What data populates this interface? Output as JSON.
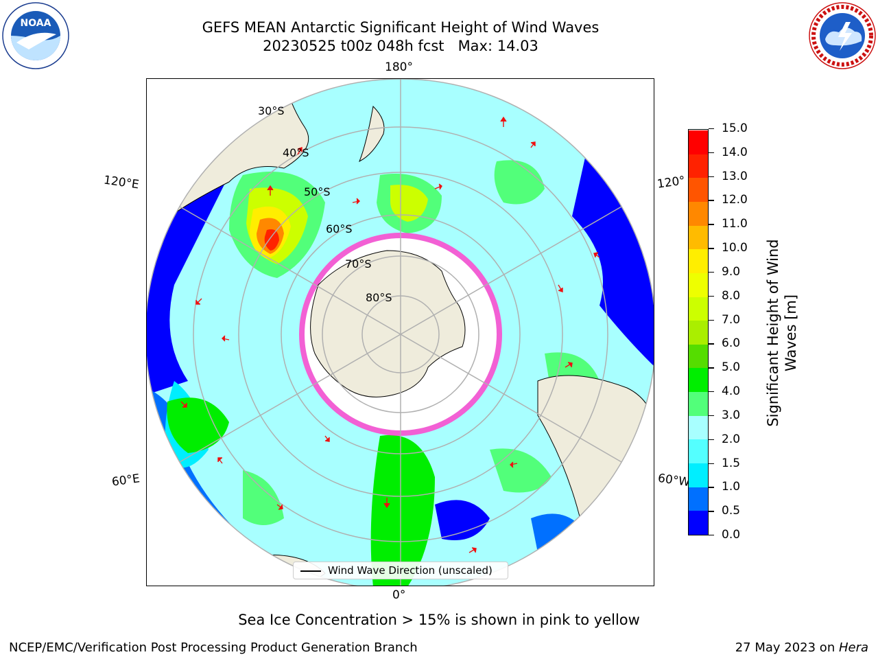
{
  "title": {
    "line1": "GEFS MEAN Antarctic Significant Height of Wind Waves",
    "line2": "20230525 t00z 048h fcst   Max: 14.03"
  },
  "logos": {
    "left": "noaa-logo",
    "right": "nws-logo"
  },
  "map": {
    "projection": "south-polar-stereographic",
    "lon_labels": {
      "top": "180°",
      "bottom": "0°",
      "upper_left": "120°E",
      "upper_right": "120°",
      "lower_left": "60°E",
      "lower_right": "60°W"
    },
    "lat_labels": [
      "30°S",
      "40°S",
      "50°S",
      "60°S",
      "70°S",
      "80°S"
    ],
    "land_color": "#efecdc",
    "arrow_color": "#ee1111"
  },
  "colorbar": {
    "label": "Significant Height of Wind Waves [m]",
    "label_line1": "Significant Height of Wind",
    "label_line2": "Waves [m]",
    "ticks": [
      "0.0",
      "0.5",
      "1.0",
      "1.5",
      "2.0",
      "3.0",
      "4.0",
      "5.0",
      "6.0",
      "7.0",
      "8.0",
      "9.0",
      "10.0",
      "11.0",
      "12.0",
      "13.0",
      "14.0",
      "15.0"
    ],
    "colors": [
      "#0000ff",
      "#0070ff",
      "#00eeff",
      "#54ffff",
      "#a8ffff",
      "#52ff7a",
      "#00ee00",
      "#55dd00",
      "#aaee00",
      "#ccff00",
      "#eeff00",
      "#ffee00",
      "#ffbb00",
      "#ff8800",
      "#ff5500",
      "#ff2200",
      "#ff0000"
    ]
  },
  "legend": {
    "label": "Wind Wave Direction (unscaled)"
  },
  "ice_note": "Sea Ice Concentration > 15% is shown in pink to yellow",
  "footer": {
    "left": "NCEP/EMC/Verification Post Processing Product Generation Branch",
    "date": "27 May 2023 on ",
    "host": "Hera"
  }
}
